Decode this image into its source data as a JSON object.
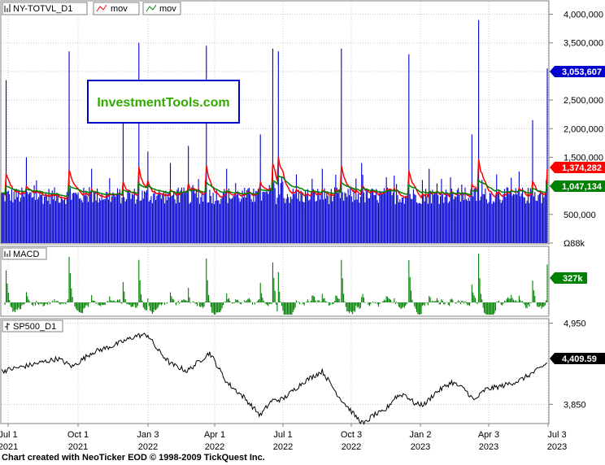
{
  "watermark": "InvestmentTools.com",
  "footer": "Chart created with NeoTicker EOD © 1998-2009 TickQuest Inc.",
  "colors": {
    "volume": "#0000cc",
    "mov_fast": "#ff0000",
    "mov_slow": "#008000",
    "macd": "#008000",
    "price": "#000000",
    "label_volume": "#0000cc",
    "label_red": "#ff0000",
    "label_green": "#008000",
    "watermark_text": "#33aa00",
    "watermark_border": "#0000cc"
  },
  "x_axis": {
    "ticks": [
      {
        "top": "Jul 1",
        "bottom": "2021"
      },
      {
        "top": "Oct 1",
        "bottom": "2021"
      },
      {
        "top": "Jan 3",
        "bottom": "2022"
      },
      {
        "top": "Apr 1",
        "bottom": "2022"
      },
      {
        "top": "Jul 1",
        "bottom": "2022"
      },
      {
        "top": "Oct 3",
        "bottom": "2022"
      },
      {
        "top": "Jan 2",
        "bottom": "2023"
      },
      {
        "top": "Apr 3",
        "bottom": "2023"
      },
      {
        "top": "Jul 3",
        "bottom": "2023"
      }
    ]
  },
  "chart_data": [
    {
      "type": "bar",
      "legend": [
        "NY-TOTVL_D1",
        "mov",
        "mov"
      ],
      "ylim": [
        0,
        4150000
      ],
      "y_ticks": [
        "4,000,000",
        "3,500,000",
        "3,000,000",
        "2,500,000",
        "2,000,000",
        "1,500,000",
        "1,000,000",
        "500,000",
        "Ω88k"
      ],
      "y_tick_values": [
        4000000,
        3500000,
        3000000,
        2500000,
        2000000,
        1500000,
        1000000,
        500000,
        0
      ],
      "last_values": [
        "3,053,607",
        "1,374,282",
        "1,047,134"
      ],
      "series": [
        {
          "name": "NY-TOTVL_D1",
          "base": 850000,
          "spikes": [
            {
              "i": 4,
              "v": 2850000
            },
            {
              "i": 22,
              "v": 1500000
            },
            {
              "i": 60,
              "v": 3350000
            },
            {
              "i": 80,
              "v": 1300000
            },
            {
              "i": 108,
              "v": 2100000
            },
            {
              "i": 122,
              "v": 3500000
            },
            {
              "i": 130,
              "v": 1600000
            },
            {
              "i": 150,
              "v": 1400000
            },
            {
              "i": 166,
              "v": 1700000
            },
            {
              "i": 182,
              "v": 3450000
            },
            {
              "i": 200,
              "v": 1300000
            },
            {
              "i": 230,
              "v": 1900000
            },
            {
              "i": 241,
              "v": 3400000
            },
            {
              "i": 246,
              "v": 3350000
            },
            {
              "i": 262,
              "v": 1200000
            },
            {
              "i": 285,
              "v": 1300000
            },
            {
              "i": 302,
              "v": 3400000
            },
            {
              "i": 320,
              "v": 1400000
            },
            {
              "i": 342,
              "v": 1150000
            },
            {
              "i": 362,
              "v": 3300000
            },
            {
              "i": 380,
              "v": 1300000
            },
            {
              "i": 399,
              "v": 1150000
            },
            {
              "i": 418,
              "v": 1900000
            },
            {
              "i": 424,
              "v": 3900000
            },
            {
              "i": 440,
              "v": 1200000
            },
            {
              "i": 460,
              "v": 1250000
            },
            {
              "i": 472,
              "v": 2150000
            },
            {
              "i": 485,
              "v": 3053607
            }
          ]
        },
        {
          "name": "mov"
        },
        {
          "name": "mov"
        }
      ]
    },
    {
      "type": "bar",
      "legend": [
        "MACD"
      ],
      "last_value": "327k"
    },
    {
      "type": "line",
      "legend": [
        "SP500_D1"
      ],
      "ylim": [
        3600,
        5000
      ],
      "y_ticks": [
        "4,950",
        "3,850"
      ],
      "y_tick_values": [
        4950,
        3850
      ],
      "last_value": "4,409.59",
      "anchors": [
        {
          "i": 0,
          "v": 4300
        },
        {
          "i": 25,
          "v": 4380
        },
        {
          "i": 50,
          "v": 4470
        },
        {
          "i": 63,
          "v": 4360
        },
        {
          "i": 80,
          "v": 4550
        },
        {
          "i": 100,
          "v": 4650
        },
        {
          "i": 120,
          "v": 4780
        },
        {
          "i": 130,
          "v": 4790
        },
        {
          "i": 138,
          "v": 4600
        },
        {
          "i": 150,
          "v": 4400
        },
        {
          "i": 165,
          "v": 4300
        },
        {
          "i": 185,
          "v": 4550
        },
        {
          "i": 200,
          "v": 4150
        },
        {
          "i": 215,
          "v": 3950
        },
        {
          "i": 230,
          "v": 3700
        },
        {
          "i": 240,
          "v": 3900
        },
        {
          "i": 250,
          "v": 3920
        },
        {
          "i": 268,
          "v": 4150
        },
        {
          "i": 285,
          "v": 4300
        },
        {
          "i": 300,
          "v": 3950
        },
        {
          "i": 315,
          "v": 3680
        },
        {
          "i": 322,
          "v": 3580
        },
        {
          "i": 330,
          "v": 3700
        },
        {
          "i": 340,
          "v": 3750
        },
        {
          "i": 350,
          "v": 3950
        },
        {
          "i": 358,
          "v": 3990
        },
        {
          "i": 368,
          "v": 3850
        },
        {
          "i": 376,
          "v": 3850
        },
        {
          "i": 385,
          "v": 4000
        },
        {
          "i": 400,
          "v": 4150
        },
        {
          "i": 412,
          "v": 4050
        },
        {
          "i": 420,
          "v": 3900
        },
        {
          "i": 430,
          "v": 4050
        },
        {
          "i": 445,
          "v": 4100
        },
        {
          "i": 460,
          "v": 4170
        },
        {
          "i": 475,
          "v": 4300
        },
        {
          "i": 485,
          "v": 4409.59
        }
      ]
    }
  ]
}
